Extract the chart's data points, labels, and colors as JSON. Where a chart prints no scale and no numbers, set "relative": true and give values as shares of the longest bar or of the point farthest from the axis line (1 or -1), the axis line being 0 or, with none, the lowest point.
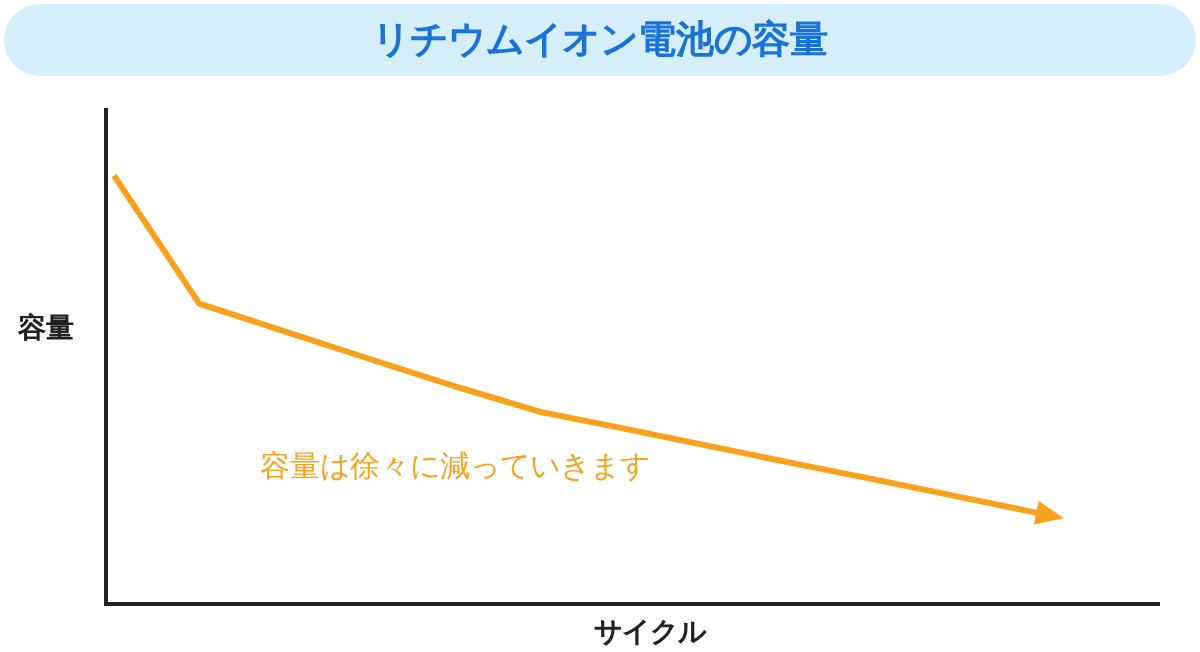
{
  "chart_data": {
    "type": "line",
    "title": "リチウムイオン電池の容量",
    "xlabel": "サイクル",
    "ylabel": "容量",
    "relative": true,
    "legend": false,
    "marker": "none",
    "line_style": "solid",
    "categories": [
      null,
      null,
      null,
      null,
      null,
      null,
      null,
      null,
      null,
      null,
      null,
      null
    ],
    "series": [
      {
        "color": "#f9a11b",
        "values": [
          1,
          0.7,
          0.635,
          0.57,
          0.506,
          0.446,
          0.406,
          0.365,
          0.324,
          0.284,
          0.243,
          0.202
        ]
      }
    ],
    "annotations": [
      "容量は徐々に減っていきます"
    ]
  }
}
